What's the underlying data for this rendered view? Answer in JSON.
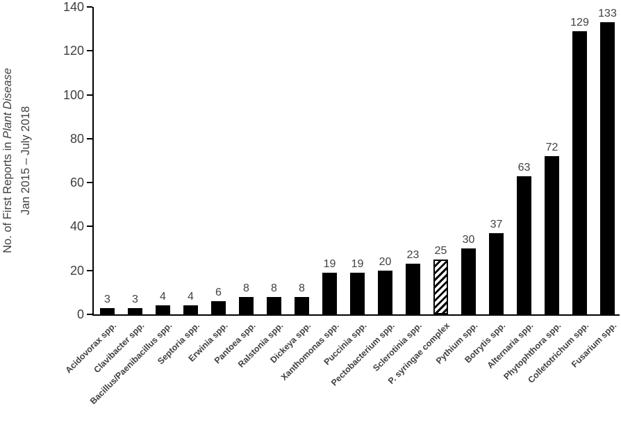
{
  "figure": {
    "background_color": "#ffffff",
    "bar_color": "#000000",
    "hatch_colors": [
      "#ffffff",
      "#000000"
    ],
    "axis_color": "#000000",
    "text_color": "#404040"
  },
  "y_axis_title": {
    "line1_prefix": "No. of First Reports in ",
    "line1_italic": "Plant Disease",
    "line2": "Jan 2015 – July 2018"
  },
  "chart_data": {
    "type": "bar",
    "title": "",
    "xlabel": "",
    "ylabel": "No. of First Reports in Plant Disease, Jan 2015 – July 2018",
    "ylim": [
      0,
      140
    ],
    "yticks": [
      0,
      20,
      40,
      60,
      80,
      100,
      120,
      140
    ],
    "grid": false,
    "legend": false,
    "value_labels_shown": true,
    "x_label_rotation_deg": 45,
    "categories": [
      "Acidovorax spp.",
      "Clavibacter spp.",
      "Bacillus/Paenibacillus spp.",
      "Septoria spp.",
      "Erwinia spp.",
      "Pantoea spp.",
      "Ralstonia spp.",
      "Dickeya spp.",
      "Xanthomonas spp.",
      "Puccinia spp.",
      "Pectobacterium spp.",
      "Sclerotinia spp.",
      "P. syringae complex",
      "Pythium spp.",
      "Botrytis spp.",
      "Alternaria spp.",
      "Phytophthora spp.",
      "Colletotrichum spp.",
      "Fusarium spp."
    ],
    "values": [
      3,
      3,
      4,
      4,
      6,
      8,
      8,
      8,
      19,
      19,
      20,
      23,
      25,
      30,
      37,
      63,
      72,
      129,
      133
    ],
    "hatched_index": 12,
    "hatched_category": "P. syringae complex"
  }
}
